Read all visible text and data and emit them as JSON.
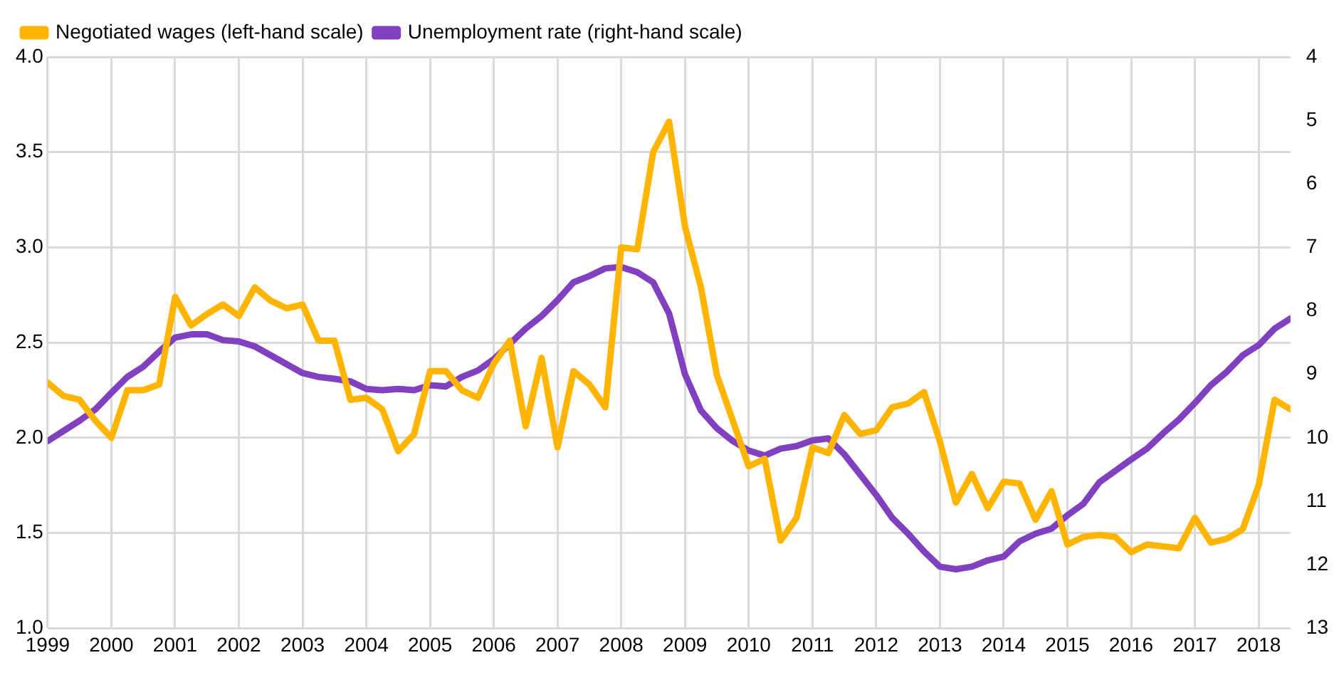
{
  "chart_data": {
    "type": "line",
    "x": [
      1999,
      1999.25,
      1999.5,
      1999.75,
      2000,
      2000.25,
      2000.5,
      2000.75,
      2001,
      2001.25,
      2001.5,
      2001.75,
      2002,
      2002.25,
      2002.5,
      2002.75,
      2003,
      2003.25,
      2003.5,
      2003.75,
      2004,
      2004.25,
      2004.5,
      2004.75,
      2005,
      2005.25,
      2005.5,
      2005.75,
      2006,
      2006.25,
      2006.5,
      2006.75,
      2007,
      2007.25,
      2007.5,
      2007.75,
      2008,
      2008.25,
      2008.5,
      2008.75,
      2009,
      2009.25,
      2009.5,
      2009.75,
      2010,
      2010.25,
      2010.5,
      2010.75,
      2011,
      2011.25,
      2011.5,
      2011.75,
      2012,
      2012.25,
      2012.5,
      2012.75,
      2013,
      2013.25,
      2013.5,
      2013.75,
      2014,
      2014.25,
      2014.5,
      2014.75,
      2015,
      2015.25,
      2015.5,
      2015.75,
      2016,
      2016.25,
      2016.5,
      2016.75,
      2017,
      2017.25,
      2017.5,
      2017.75,
      2018,
      2018.25,
      2018.5
    ],
    "series": [
      {
        "name": "Negotiated wages (left-hand scale)",
        "color": "#ffb400",
        "values": [
          2.29,
          2.22,
          2.2,
          2.09,
          2.0,
          2.25,
          2.25,
          2.28,
          2.74,
          2.59,
          2.65,
          2.7,
          2.64,
          2.79,
          2.72,
          2.68,
          2.7,
          2.51,
          2.51,
          2.2,
          2.21,
          2.15,
          1.93,
          2.02,
          2.35,
          2.35,
          2.25,
          2.21,
          2.39,
          2.51,
          2.06,
          2.42,
          1.95,
          2.35,
          2.28,
          2.16,
          3.0,
          2.99,
          3.5,
          3.66,
          3.11,
          2.79,
          2.33,
          2.09,
          1.85,
          1.89,
          1.46,
          1.58,
          1.95,
          1.92,
          2.12,
          2.02,
          2.04,
          2.16,
          2.18,
          2.24,
          1.98,
          1.66,
          1.81,
          1.63,
          1.77,
          1.76,
          1.57,
          1.72,
          1.44,
          1.48,
          1.49,
          1.48,
          1.4,
          1.44,
          1.43,
          1.42,
          1.58,
          1.45,
          1.47,
          1.52,
          1.75,
          2.2,
          2.15
        ]
      },
      {
        "name": "Unemployment rate (right-hand scale)",
        "color": "#8040c0",
        "axis": "y2",
        "values": [
          10.05,
          9.89,
          9.73,
          9.55,
          9.29,
          9.04,
          8.88,
          8.64,
          8.42,
          8.37,
          8.37,
          8.46,
          8.48,
          8.56,
          8.7,
          8.84,
          8.98,
          9.04,
          9.07,
          9.11,
          9.23,
          9.25,
          9.23,
          9.25,
          9.17,
          9.19,
          9.04,
          8.94,
          8.76,
          8.52,
          8.28,
          8.08,
          7.83,
          7.55,
          7.45,
          7.33,
          7.31,
          7.39,
          7.55,
          8.04,
          9.0,
          9.57,
          9.85,
          10.05,
          10.2,
          10.28,
          10.17,
          10.13,
          10.04,
          10.01,
          10.26,
          10.58,
          10.9,
          11.26,
          11.51,
          11.79,
          12.03,
          12.07,
          12.03,
          11.93,
          11.87,
          11.63,
          11.51,
          11.43,
          11.22,
          11.04,
          10.7,
          10.52,
          10.34,
          10.17,
          9.93,
          9.71,
          9.45,
          9.17,
          8.96,
          8.7,
          8.54,
          8.28,
          8.12
        ]
      }
    ],
    "xlim": [
      1999,
      2018.5
    ],
    "xticks": [
      1999,
      2000,
      2001,
      2002,
      2003,
      2004,
      2005,
      2006,
      2007,
      2008,
      2009,
      2010,
      2011,
      2012,
      2013,
      2014,
      2015,
      2016,
      2017,
      2018
    ],
    "ylim": [
      1.0,
      4.0
    ],
    "yticks": [
      {
        "value": 1,
        "label": "1.0"
      },
      {
        "value": 1.5,
        "label": "1.5"
      },
      {
        "value": 2,
        "label": "2.0"
      },
      {
        "value": 2.5,
        "label": "2.5"
      },
      {
        "value": 3,
        "label": "3.0"
      },
      {
        "value": 3.5,
        "label": "3.5"
      },
      {
        "value": 4,
        "label": "4.0"
      }
    ],
    "y2lim": [
      13,
      4
    ],
    "y2ticks": [
      13,
      12,
      11,
      10,
      9,
      8,
      7,
      6,
      5,
      4
    ],
    "grid": true,
    "legend": "top left"
  }
}
